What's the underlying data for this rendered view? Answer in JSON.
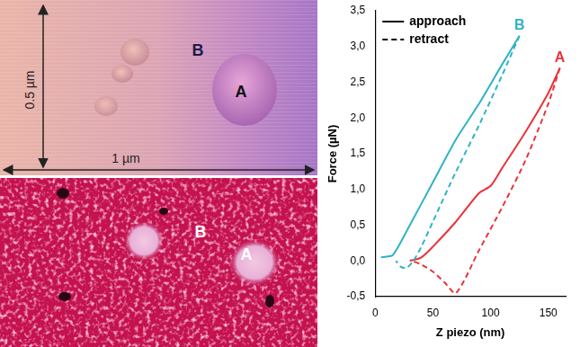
{
  "chart_data": {
    "type": "line",
    "x_label": "Z piezo (nm)",
    "y_label": "Force (µN)",
    "xlim": [
      0,
      165
    ],
    "xticks": [
      0,
      50,
      100,
      150
    ],
    "ylim": [
      -0.5,
      3.5
    ],
    "yticks": [
      {
        "value": -0.5,
        "label": "-0,5"
      },
      {
        "value": 0,
        "label": "0,0"
      },
      {
        "value": 0.5,
        "label": "0,5"
      },
      {
        "value": 1,
        "label": "1,0"
      },
      {
        "value": 1.5,
        "label": "1,5"
      },
      {
        "value": 2,
        "label": "2,0"
      },
      {
        "value": 2.5,
        "label": "2,5"
      },
      {
        "value": 3,
        "label": "3,0"
      },
      {
        "value": 3.5,
        "label": "3,5"
      }
    ],
    "grid": false,
    "legend": "top-left",
    "series": [
      {
        "name": "approach",
        "label": "B",
        "color": "#2fb3c4",
        "line_style": "solid",
        "x": [
          5,
          10,
          15,
          20,
          30,
          50,
          70,
          90,
          110,
          125
        ],
        "values": [
          0.05,
          0.06,
          0.08,
          0.2,
          0.5,
          1.1,
          1.7,
          2.2,
          2.75,
          3.15
        ]
      },
      {
        "name": "retract",
        "color": "#2fb3c4",
        "line_style": "dashed",
        "x": [
          125,
          110,
          90,
          70,
          50,
          40,
          33,
          27,
          22,
          18
        ],
        "values": [
          3.15,
          2.6,
          1.9,
          1.25,
          0.55,
          0.2,
          0.0,
          -0.1,
          -0.08,
          0.0
        ]
      },
      {
        "name": "approach",
        "label": "A",
        "color": "#e8343a",
        "line_style": "solid",
        "x": [
          30,
          40,
          50,
          70,
          90,
          100,
          110,
          130,
          150,
          160
        ],
        "values": [
          0.0,
          0.05,
          0.2,
          0.55,
          0.95,
          1.05,
          1.3,
          1.8,
          2.35,
          2.7
        ]
      },
      {
        "name": "retract",
        "color": "#e8343a",
        "line_style": "dashed",
        "x": [
          160,
          150,
          130,
          110,
          90,
          70,
          60,
          50,
          40,
          32
        ],
        "values": [
          2.7,
          2.2,
          1.4,
          0.75,
          0.15,
          -0.45,
          -0.3,
          -0.15,
          -0.05,
          0.0
        ]
      }
    ]
  },
  "top_image": {
    "labels": [
      "A",
      "B"
    ],
    "height_label": "0.5 µm",
    "width_label": "1 µm"
  },
  "bottom_image": {
    "labels": [
      "A",
      "B"
    ]
  }
}
